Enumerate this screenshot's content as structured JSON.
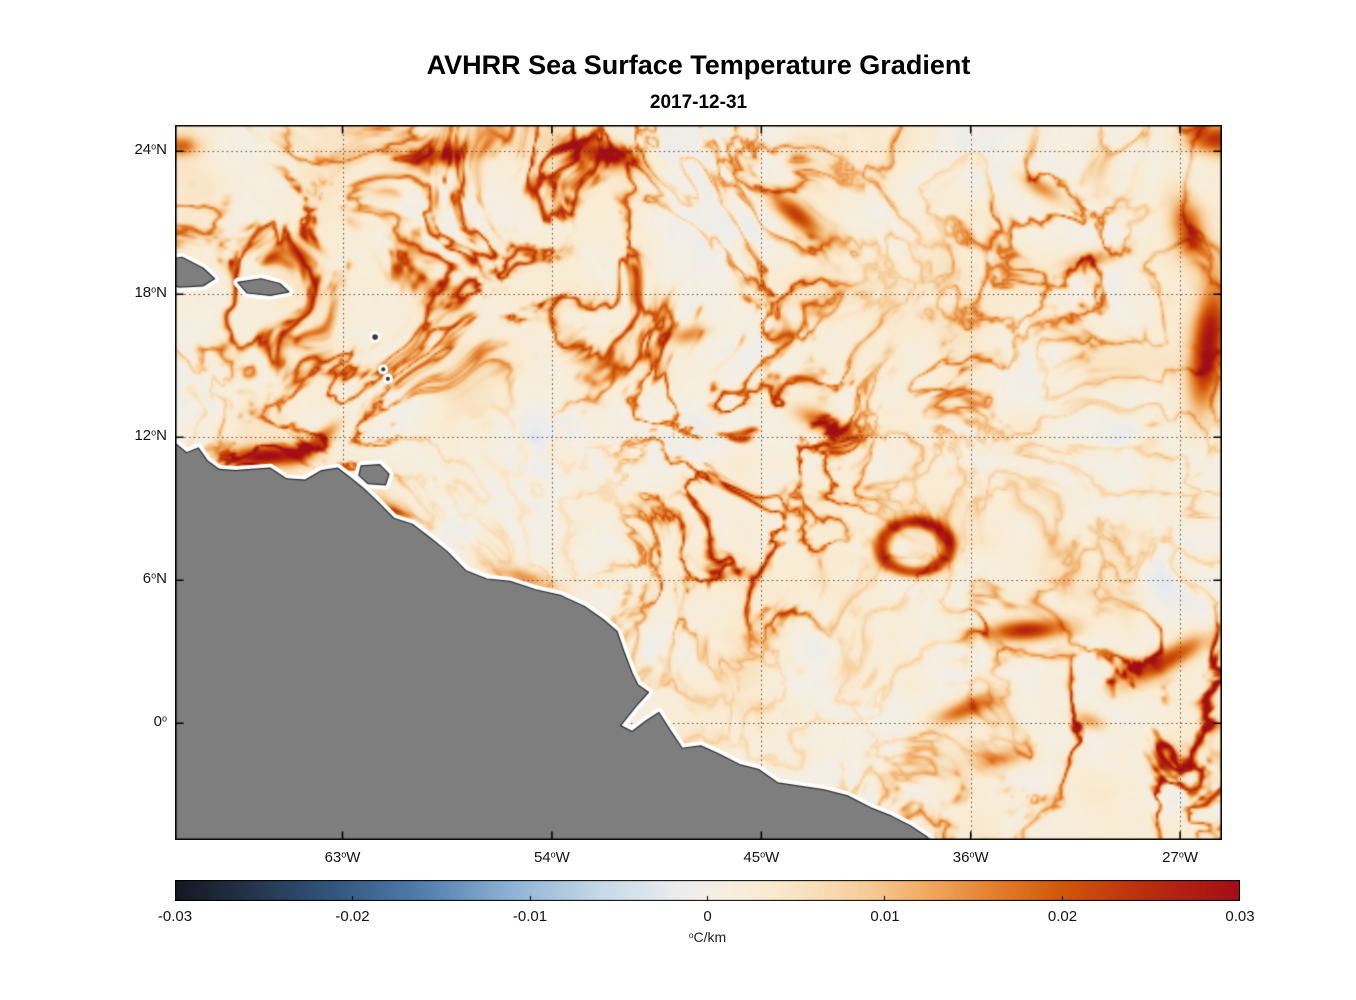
{
  "chart_data": {
    "type": "heatmap",
    "title": "AVHRR Sea Surface Temperature Gradient",
    "subtitle": "2017-12-31",
    "units": "°C/km",
    "lon_range": [
      -70.2,
      -25.2
    ],
    "lat_range": [
      -4.9,
      25.1
    ],
    "value_range": [
      -0.03,
      0.03
    ],
    "x_ticks": [
      {
        "value": -63,
        "label": "63°W"
      },
      {
        "value": -54,
        "label": "54°W"
      },
      {
        "value": -45,
        "label": "45°W"
      },
      {
        "value": -36,
        "label": "36°W"
      },
      {
        "value": -27,
        "label": "27°W"
      }
    ],
    "y_ticks": [
      {
        "value": 24,
        "label": "24°N"
      },
      {
        "value": 18,
        "label": "18°N"
      },
      {
        "value": 12,
        "label": "12°N"
      },
      {
        "value": 6,
        "label": "6°N"
      },
      {
        "value": 0,
        "label": "0°"
      }
    ],
    "colorbar_ticks": [
      {
        "value": -0.03,
        "label": "-0.03"
      },
      {
        "value": -0.02,
        "label": "-0.02"
      },
      {
        "value": -0.01,
        "label": "-0.01"
      },
      {
        "value": 0,
        "label": "0"
      },
      {
        "value": 0.01,
        "label": "0.01"
      },
      {
        "value": 0.02,
        "label": "0.02"
      },
      {
        "value": 0.03,
        "label": "0.03"
      }
    ],
    "grid": {
      "style": "dotted",
      "color": "rgba(60,60,60,0.9)"
    },
    "colormap": [
      {
        "value": -0.03,
        "color": "#14181f"
      },
      {
        "value": -0.026,
        "color": "#23324a"
      },
      {
        "value": -0.021,
        "color": "#33567f"
      },
      {
        "value": -0.016,
        "color": "#527fae"
      },
      {
        "value": -0.011,
        "color": "#8fb3d4"
      },
      {
        "value": -0.006,
        "color": "#c6d9e8"
      },
      {
        "value": -0.002,
        "color": "#e9ebed"
      },
      {
        "value": 0.0,
        "color": "#f4efe6"
      },
      {
        "value": 0.003,
        "color": "#f9ecd4"
      },
      {
        "value": 0.006,
        "color": "#f9dfba"
      },
      {
        "value": 0.009,
        "color": "#f6cc98"
      },
      {
        "value": 0.012,
        "color": "#f1ae69"
      },
      {
        "value": 0.016,
        "color": "#e4812f"
      },
      {
        "value": 0.02,
        "color": "#d0570a"
      },
      {
        "value": 0.025,
        "color": "#b92b0e"
      },
      {
        "value": 0.03,
        "color": "#a30e16"
      }
    ],
    "land_color": "#7e7e7e",
    "land_edge_color": "#2f2f2f",
    "coast_halo_color": "#ffffff",
    "description": "Map of sea surface temperature gradient magnitude off northeastern South America (Caribbean to Brazil). Cream ocean background with orange/red high-gradient filaments, gray land with white no-data coastal halo, dotted graticule, horizontal diverging colorbar from -0.03 to 0.03 degC/km.",
    "land": {
      "mainland": [
        [
          -71.0,
          11.9
        ],
        [
          -70.2,
          11.75
        ],
        [
          -69.7,
          11.35
        ],
        [
          -69.2,
          11.55
        ],
        [
          -68.8,
          11.0
        ],
        [
          -68.3,
          10.65
        ],
        [
          -67.6,
          10.6
        ],
        [
          -66.9,
          10.65
        ],
        [
          -66.1,
          10.7
        ],
        [
          -65.4,
          10.25
        ],
        [
          -64.6,
          10.2
        ],
        [
          -63.9,
          10.6
        ],
        [
          -63.2,
          10.7
        ],
        [
          -62.6,
          10.25
        ],
        [
          -62.1,
          9.85
        ],
        [
          -61.5,
          9.3
        ],
        [
          -60.8,
          8.6
        ],
        [
          -60.0,
          8.35
        ],
        [
          -59.2,
          7.75
        ],
        [
          -58.5,
          7.2
        ],
        [
          -57.7,
          6.4
        ],
        [
          -56.8,
          6.05
        ],
        [
          -55.8,
          5.95
        ],
        [
          -54.7,
          5.6
        ],
        [
          -53.6,
          5.35
        ],
        [
          -52.6,
          4.9
        ],
        [
          -51.8,
          4.35
        ],
        [
          -51.2,
          3.85
        ],
        [
          -50.9,
          3.0
        ],
        [
          -50.55,
          2.1
        ],
        [
          -50.3,
          1.6
        ],
        [
          -49.85,
          1.3
        ],
        [
          -50.4,
          0.7
        ],
        [
          -51.05,
          -0.1
        ],
        [
          -50.55,
          -0.35
        ],
        [
          -49.95,
          0.1
        ],
        [
          -49.4,
          0.45
        ],
        [
          -48.95,
          -0.25
        ],
        [
          -48.4,
          -1.05
        ],
        [
          -47.6,
          -0.95
        ],
        [
          -46.8,
          -1.3
        ],
        [
          -45.9,
          -1.75
        ],
        [
          -45.1,
          -1.95
        ],
        [
          -44.3,
          -2.5
        ],
        [
          -43.3,
          -2.65
        ],
        [
          -42.3,
          -2.8
        ],
        [
          -41.3,
          -3.05
        ],
        [
          -40.3,
          -3.55
        ],
        [
          -39.4,
          -3.9
        ],
        [
          -38.6,
          -4.3
        ],
        [
          -37.9,
          -4.75
        ],
        [
          -37.3,
          -5.3
        ],
        [
          -37.0,
          -6.5
        ],
        [
          -71.0,
          -6.5
        ]
      ],
      "islands": [
        [
          [
            -71.0,
            19.4
          ],
          [
            -69.9,
            19.55
          ],
          [
            -69.0,
            19.1
          ],
          [
            -68.5,
            18.65
          ],
          [
            -69.0,
            18.35
          ],
          [
            -70.0,
            18.3
          ],
          [
            -71.0,
            18.5
          ]
        ],
        [
          [
            -67.5,
            18.5
          ],
          [
            -66.5,
            18.65
          ],
          [
            -65.7,
            18.45
          ],
          [
            -65.3,
            18.1
          ],
          [
            -66.1,
            17.95
          ],
          [
            -67.1,
            18.05
          ]
        ],
        [
          [
            -62.2,
            10.8
          ],
          [
            -61.4,
            10.85
          ],
          [
            -61.0,
            10.45
          ],
          [
            -61.15,
            10.0
          ],
          [
            -61.9,
            10.05
          ],
          [
            -62.3,
            10.4
          ]
        ]
      ],
      "small_islands": [
        {
          "lon": -61.6,
          "lat": 16.2,
          "r": 0.12
        },
        {
          "lon": -61.25,
          "lat": 14.85,
          "r": 0.09
        },
        {
          "lon": -61.05,
          "lat": 14.45,
          "r": 0.09
        }
      ]
    },
    "high_gradient_features": [
      {
        "lon": -66.3,
        "lat": 11.2,
        "amp": 0.027,
        "sx": 1.3,
        "sy": 0.3,
        "rot": 3
      },
      {
        "lon": -64.0,
        "lat": 11.9,
        "amp": 0.02,
        "sx": 0.8,
        "sy": 0.25,
        "rot": 38
      },
      {
        "lon": -69.9,
        "lat": 24.2,
        "amp": 0.015,
        "sx": 0.5,
        "sy": 0.3,
        "rot": 0
      },
      {
        "lon": -58.8,
        "lat": 23.8,
        "amp": 0.018,
        "sx": 0.9,
        "sy": 0.33,
        "rot": 8
      },
      {
        "lon": -51.9,
        "lat": 23.9,
        "amp": 0.022,
        "sx": 1.2,
        "sy": 0.38,
        "rot": -12
      },
      {
        "lon": -43.6,
        "lat": 21.4,
        "amp": 0.022,
        "sx": 1.0,
        "sy": 0.35,
        "rot": -38
      },
      {
        "lon": -48.1,
        "lat": 16.3,
        "amp": 0.014,
        "sx": 0.6,
        "sy": 0.28,
        "rot": 15
      },
      {
        "lon": -42.3,
        "lat": 12.6,
        "amp": 0.018,
        "sx": 0.9,
        "sy": 0.3,
        "rot": -22
      },
      {
        "lon": -38.4,
        "lat": 7.4,
        "amp": 0.022,
        "sx": 1.45,
        "sy": 1.05,
        "rot": 0,
        "ring": true
      },
      {
        "lon": -33.6,
        "lat": 3.9,
        "amp": 0.024,
        "sx": 1.3,
        "sy": 0.32,
        "rot": 4
      },
      {
        "lon": -27.7,
        "lat": 2.6,
        "amp": 0.021,
        "sx": 1.5,
        "sy": 0.36,
        "rot": 28
      },
      {
        "lon": -25.8,
        "lat": 15.8,
        "amp": 0.027,
        "sx": 0.5,
        "sy": 1.9,
        "rot": -8
      },
      {
        "lon": -26.6,
        "lat": 20.6,
        "amp": 0.018,
        "sx": 0.5,
        "sy": 1.0,
        "rot": 18
      },
      {
        "lon": -25.5,
        "lat": 24.5,
        "amp": 0.022,
        "sx": 0.9,
        "sy": 0.45,
        "rot": 0
      },
      {
        "lon": -30.9,
        "lat": 19.4,
        "amp": 0.017,
        "sx": 0.75,
        "sy": 0.3,
        "rot": 12
      },
      {
        "lon": -60.9,
        "lat": 8.9,
        "amp": 0.013,
        "sx": 0.7,
        "sy": 0.3,
        "rot": -40
      },
      {
        "lon": -55.2,
        "lat": 6.1,
        "amp": 0.012,
        "sx": 1.1,
        "sy": 0.3,
        "rot": -18
      },
      {
        "lon": -36.2,
        "lat": 0.6,
        "amp": 0.016,
        "sx": 1.0,
        "sy": 0.3,
        "rot": 20
      },
      {
        "lon": -33.0,
        "lat": 22.5,
        "amp": 0.015,
        "sx": 0.8,
        "sy": 0.3,
        "rot": -30
      },
      {
        "lon": -34.7,
        "lat": -1.5,
        "amp": 0.012,
        "sx": 0.8,
        "sy": 0.3,
        "rot": 10
      },
      {
        "lon": -30.9,
        "lat": 0.1,
        "amp": 0.014,
        "sx": 0.6,
        "sy": 0.3,
        "rot": -15
      }
    ],
    "texture": {
      "seed": 7,
      "warp_scale": 0.16,
      "warp_amp": 3.2,
      "filament_scale": 0.55,
      "filament_threshold": 0.7,
      "filament_sharpness": 2.6,
      "filament_amp": 0.03,
      "patch_scale": 0.11,
      "patch_bias": 0.4,
      "patch_floor": 0.18,
      "patch_gain": 1.9,
      "east_boost": 0.55,
      "base_scale": 0.33,
      "base_amp": 0.005,
      "base_offset": 0.0015
    }
  }
}
